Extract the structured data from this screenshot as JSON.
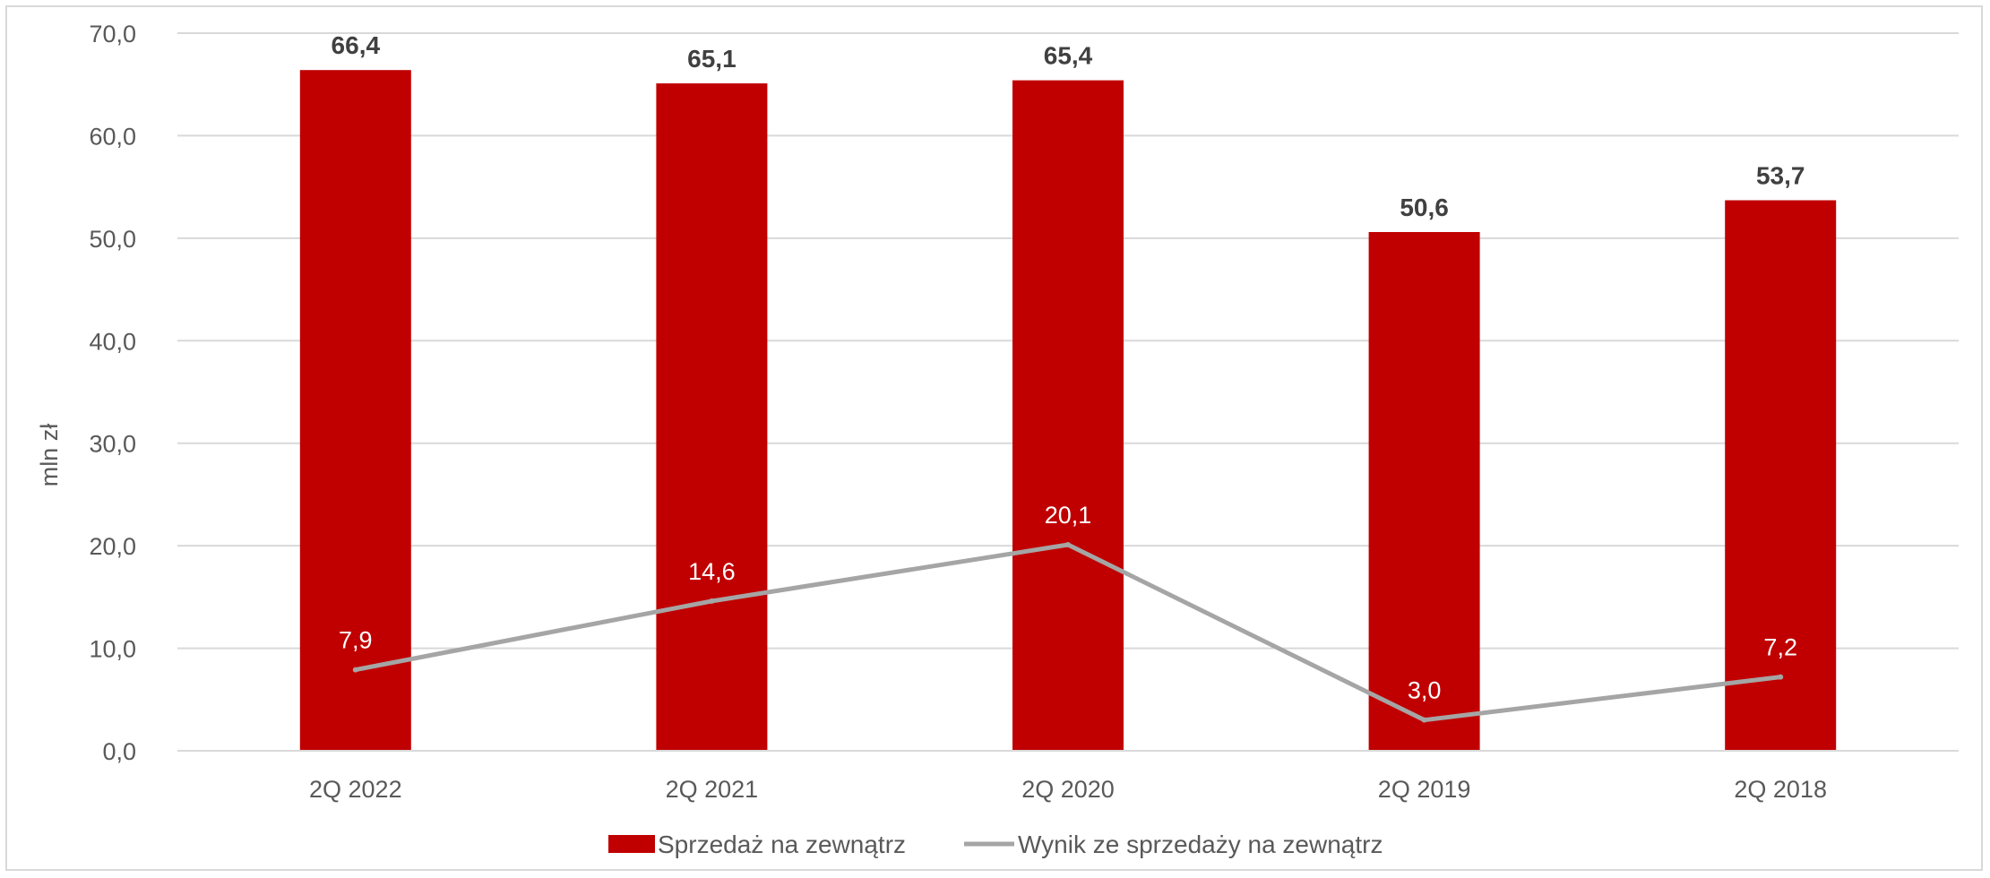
{
  "chart_data": {
    "type": "bar",
    "categories": [
      "2Q 2022",
      "2Q 2021",
      "2Q 2020",
      "2Q 2019",
      "2Q 2018"
    ],
    "ylabel": "mln zł",
    "ylim": [
      0,
      70
    ],
    "yticks": [
      "0,0",
      "10,0",
      "20,0",
      "30,0",
      "40,0",
      "50,0",
      "60,0",
      "70,0"
    ],
    "grid": true,
    "legend_position": "bottom",
    "series": [
      {
        "name": "Sprzedaż na zewnątrz",
        "type": "bar",
        "color": "#c00000",
        "values": [
          66.4,
          65.1,
          65.4,
          50.6,
          53.7
        ],
        "labels": [
          "66,4",
          "65,1",
          "65,4",
          "50,6",
          "53,7"
        ]
      },
      {
        "name": "Wynik ze sprzedaży na zewnątrz",
        "type": "line",
        "color": "#a5a5a5",
        "values": [
          7.9,
          14.6,
          20.1,
          3.0,
          7.2
        ],
        "labels": [
          "7,9",
          "14,6",
          "20,1",
          "3,0",
          "7,2"
        ]
      }
    ]
  }
}
